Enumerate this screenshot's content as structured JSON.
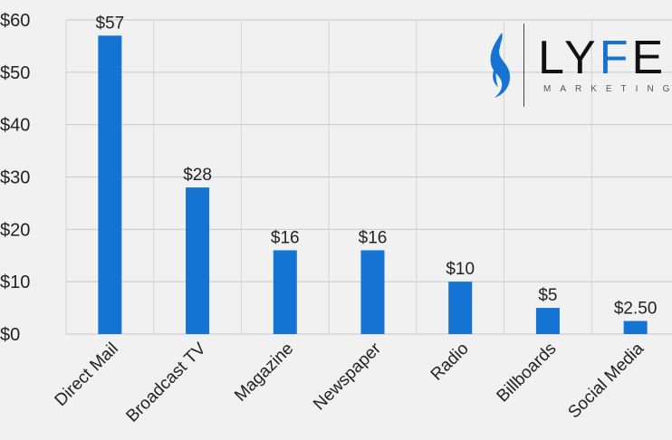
{
  "chart_data": {
    "type": "bar",
    "categories": [
      "Direct Mail",
      "Broadcast TV",
      "Magazine",
      "Newspaper",
      "Radio",
      "Billboards",
      "Social Media"
    ],
    "values": [
      57,
      28,
      16,
      16,
      10,
      5,
      2.5
    ],
    "data_labels": [
      "$57",
      "$28",
      "$16",
      "$16",
      "$10",
      "$5",
      "$2.50"
    ],
    "y_ticks": [
      0,
      10,
      20,
      30,
      40,
      50,
      60
    ],
    "y_tick_labels": [
      "$0",
      "$10",
      "$20",
      "$30",
      "$40",
      "$50",
      "$60"
    ],
    "ylim": [
      0,
      60
    ],
    "grid": true,
    "bar_color": "#1473d3"
  },
  "logo": {
    "word_part1": "LY",
    "word_part2": "F",
    "word_part3": "E",
    "sub": "MARKETING",
    "accent_color": "#1473d3"
  }
}
